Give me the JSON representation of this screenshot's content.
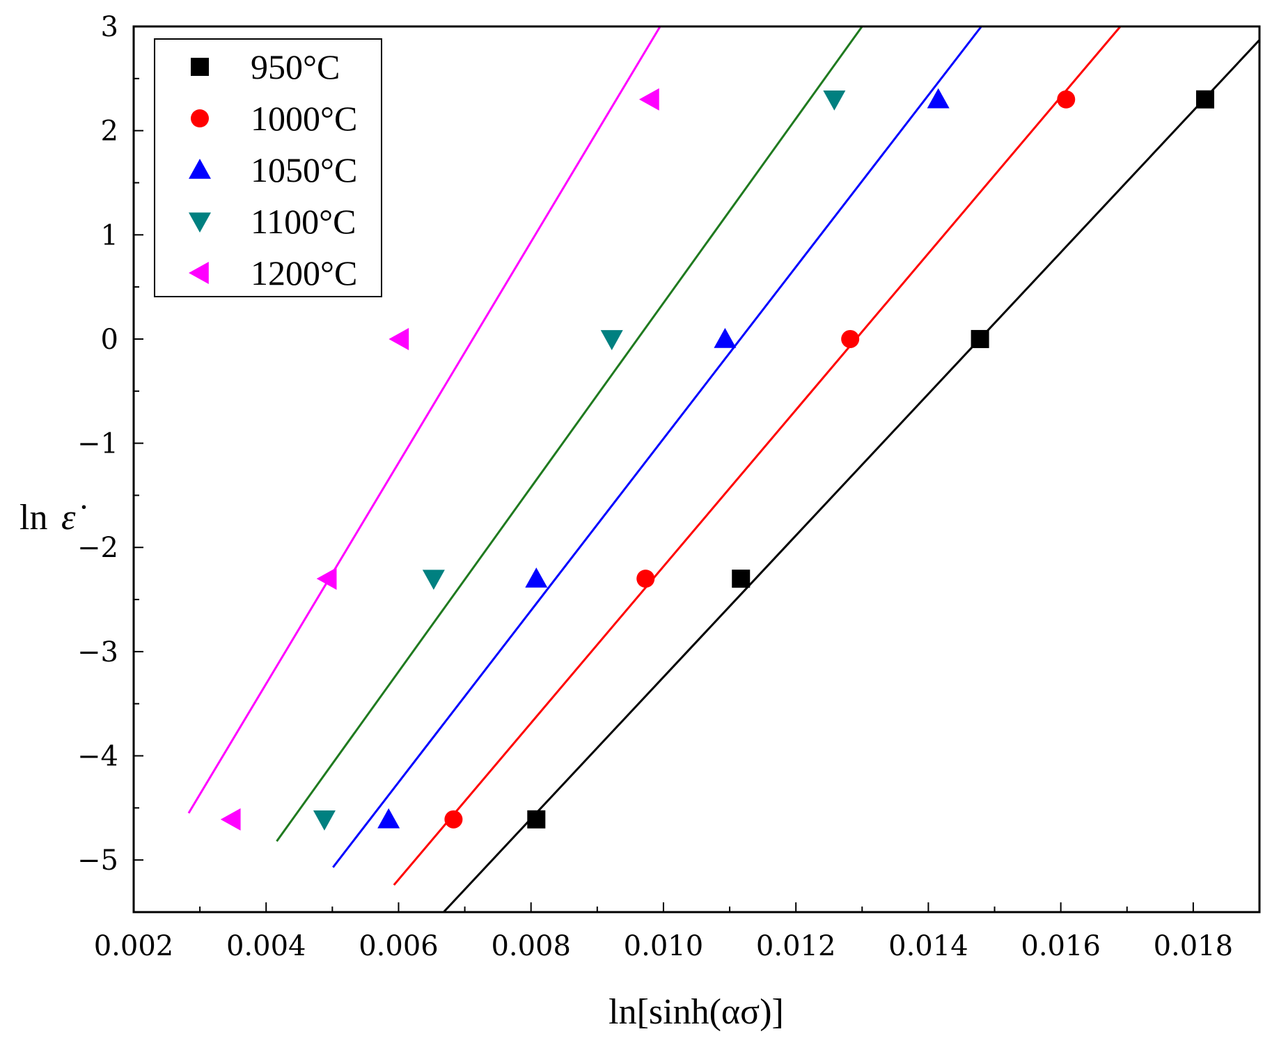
{
  "chart_data": {
    "type": "scatter",
    "title": "",
    "xlabel": "ln[sinh(ασ)]",
    "ylabel_text": "ln",
    "ylabel_symbol": "ε̇",
    "xlim": [
      0.002,
      0.019
    ],
    "ylim": [
      -5.5,
      3
    ],
    "xticks": [
      0.002,
      0.004,
      0.006,
      0.008,
      0.01,
      0.012,
      0.014,
      0.016,
      0.018
    ],
    "xtick_labels": [
      "0.002",
      "0.004",
      "0.006",
      "0.008",
      "0.010",
      "0.012",
      "0.014",
      "0.016",
      "0.018"
    ],
    "yticks": [
      3,
      2,
      1,
      0,
      -1,
      -2,
      -3,
      -4,
      -5
    ],
    "ytick_labels": [
      "3",
      "2",
      "1",
      "0",
      "−1",
      "−2",
      "−3",
      "−4",
      "−5"
    ],
    "grid": false,
    "legend_position": "top-left",
    "series": [
      {
        "name": "950°C",
        "marker": "square",
        "color": "#000000",
        "x": [
          0.00808,
          0.01117,
          0.01478,
          0.01818
        ],
        "y": [
          -4.61,
          -2.3,
          0.0,
          2.3
        ],
        "fit_line": {
          "x": [
            0.00668,
            0.019
          ],
          "y": [
            -5.5,
            2.87
          ]
        }
      },
      {
        "name": "1000°C",
        "marker": "circle",
        "color": "#ff0000",
        "x": [
          0.00683,
          0.00973,
          0.01282,
          0.01608
        ],
        "y": [
          -4.61,
          -2.3,
          0.0,
          2.3
        ],
        "fit_line": {
          "x": [
            0.00593,
            0.0169
          ],
          "y": [
            -5.24,
            3.0
          ]
        }
      },
      {
        "name": "1050°C",
        "marker": "triangle-up",
        "color": "#0000ff",
        "x": [
          0.00585,
          0.00808,
          0.01093,
          0.01415
        ],
        "y": [
          -4.61,
          -2.3,
          0.0,
          2.3
        ],
        "fit_line": {
          "x": [
            0.00501,
            0.0148
          ],
          "y": [
            -5.07,
            3.0
          ]
        }
      },
      {
        "name": "1100°C",
        "marker": "triangle-down",
        "color": "#008080",
        "x": [
          0.00488,
          0.00653,
          0.00922,
          0.01258
        ],
        "y": [
          -4.61,
          -2.3,
          0.0,
          2.3
        ],
        "fit_line": {
          "x": [
            0.00416,
            0.013
          ],
          "y": [
            -4.82,
            3.0
          ]
        }
      },
      {
        "name": "1200°C",
        "marker": "triangle-left",
        "color": "#ff00ff",
        "x": [
          0.00348,
          0.00493,
          0.00602,
          0.0098
        ],
        "y": [
          -4.61,
          -2.3,
          0.0,
          2.3
        ],
        "fit_line": {
          "x": [
            0.00283,
            0.00995
          ],
          "y": [
            -4.55,
            3.0
          ]
        }
      }
    ]
  },
  "fit_line_colors": {
    "950°C": "#000000",
    "1000°C": "#ff0000",
    "1050°C": "#0000ff",
    "1100°C": "#1f7a1f",
    "1200°C": "#ff00ff"
  }
}
